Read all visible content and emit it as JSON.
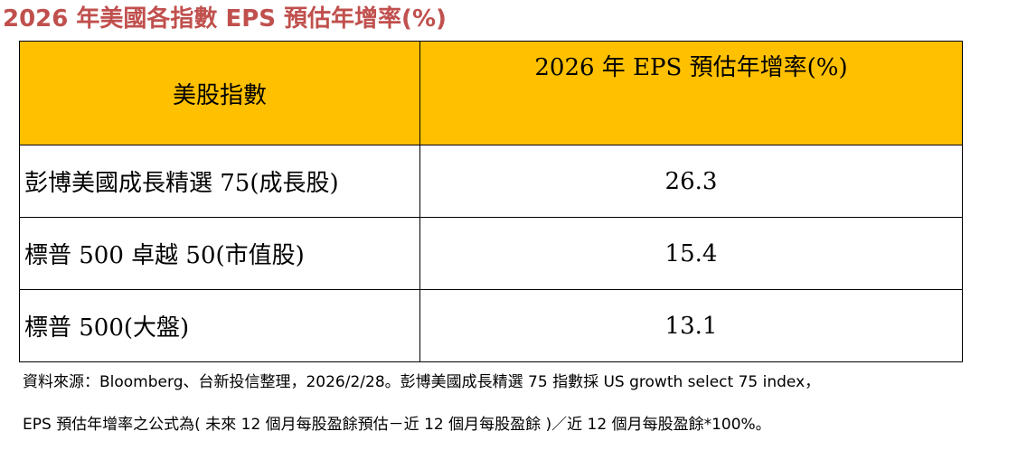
{
  "title": "2026 年美國各指數 EPS 預估年增率(%)",
  "table": {
    "headers": [
      "美股指數",
      "2026 年 EPS 預估年增率(%)"
    ],
    "rows": [
      {
        "name": "彭博美國成長精選 75(成長股)",
        "value": "26.3"
      },
      {
        "name": "標普 500 卓越 50(市值股)",
        "value": "15.4"
      },
      {
        "name": "標普 500(大盤)",
        "value": "13.1"
      }
    ]
  },
  "notes": [
    "資料來源：Bloomberg、台新投信整理，2026/2/28。彭博美國成長精選 75 指數採 US growth select 75 index，",
    "EPS 預估年增率之公式為( 未來 12 個月每股盈餘預估－近 12 個月每股盈餘 )／近 12 個月每股盈餘*100%。"
  ],
  "colors": {
    "title": "#c0504d",
    "header_bg": "#ffc000"
  }
}
